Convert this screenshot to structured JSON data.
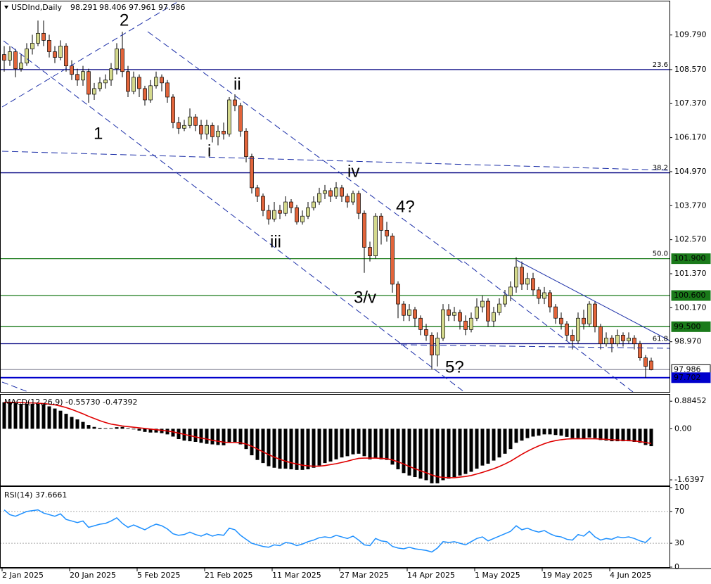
{
  "chart_data": [
    {
      "type": "candlestick",
      "symbol": "USDInd,Daily",
      "up_color": "#d4d98c",
      "down_color": "#e2643a",
      "ylim": [
        97.2,
        110.95
      ],
      "yticks": [
        {
          "value": 109.79,
          "label": "109.790"
        },
        {
          "value": 108.57,
          "label": "108.570"
        },
        {
          "value": 107.37,
          "label": "107.370"
        },
        {
          "value": 106.17,
          "label": "106.170"
        },
        {
          "value": 104.97,
          "label": "104.970"
        },
        {
          "value": 103.77,
          "label": "103.770"
        },
        {
          "value": 102.57,
          "label": "102.570"
        },
        {
          "value": 101.37,
          "label": "101.370"
        },
        {
          "value": 100.17,
          "label": "100.170"
        },
        {
          "value": 98.97,
          "label": "98.970"
        }
      ],
      "levels": [
        {
          "value": 108.57,
          "color": "#000080",
          "fib": "23.6"
        },
        {
          "value": 104.93,
          "color": "#000080",
          "fib": "38.2"
        },
        {
          "value": 101.9,
          "color": "#1a7a1a",
          "fib": "50.0",
          "label": "101.900"
        },
        {
          "value": 100.6,
          "color": "#1a7a1a",
          "label": "100.600"
        },
        {
          "value": 99.5,
          "color": "#1a7a1a",
          "label": "99.500"
        },
        {
          "value": 98.9,
          "color": "#000080",
          "fib": "61.8"
        },
        {
          "value": 97.986,
          "color": "#9a9aa8",
          "label": "97.986"
        },
        {
          "value": 97.702,
          "color": "#0000cc",
          "label": "97.702"
        }
      ],
      "annotations": [
        "2",
        "ii",
        "1",
        "i",
        "iv",
        "4?",
        "iii",
        "3/v",
        "5?"
      ],
      "categories": [
        "2 Jan 2025",
        null,
        null,
        null,
        null,
        null,
        null,
        null,
        null,
        null,
        null,
        null,
        "20 Jan 2025",
        null,
        null,
        null,
        null,
        null,
        null,
        null,
        null,
        null,
        null,
        null,
        "5 Feb 2025",
        null,
        null,
        null,
        null,
        null,
        null,
        null,
        null,
        null,
        null,
        null,
        "21 Feb 2025",
        null,
        null,
        null,
        null,
        null,
        null,
        null,
        null,
        null,
        null,
        null,
        "11 Mar 2025",
        null,
        null,
        null,
        null,
        null,
        null,
        null,
        null,
        null,
        null,
        null,
        "27 Mar 2025",
        null,
        null,
        null,
        null,
        null,
        null,
        null,
        null,
        null,
        null,
        null,
        "14 Apr 2025",
        null,
        null,
        null,
        null,
        null,
        null,
        null,
        null,
        null,
        null,
        null,
        "1 May 2025",
        null,
        null,
        null,
        null,
        null,
        null,
        null,
        null,
        null,
        null,
        null,
        "19 May 2025",
        null,
        null,
        null,
        null,
        null,
        null,
        null,
        null,
        null,
        null,
        null,
        "4 Jun 2025",
        null,
        null,
        null,
        null,
        null,
        null,
        null
      ],
      "open": [
        109.1,
        108.9,
        109.2,
        108.6,
        108.8,
        109.3,
        109.5,
        109.85,
        109.6,
        109.2,
        109.0,
        109.4,
        108.7,
        108.4,
        108.2,
        108.5,
        107.7,
        107.9,
        108.1,
        108.2,
        108.6,
        109.3,
        108.5,
        107.8,
        108.3,
        107.9,
        107.5,
        108.0,
        108.3,
        108.1,
        107.6,
        106.7,
        106.5,
        106.6,
        106.9,
        106.6,
        106.3,
        106.6,
        106.2,
        106.4,
        106.3,
        107.5,
        107.3,
        106.4,
        105.5,
        104.4,
        104.1,
        103.6,
        103.3,
        103.6,
        103.5,
        103.9,
        103.7,
        103.2,
        103.4,
        103.7,
        103.9,
        104.2,
        104.3,
        104.1,
        104.4,
        104.1,
        103.9,
        104.2,
        103.5,
        102.3,
        102.0,
        103.4,
        102.9,
        102.7,
        101.0,
        100.3,
        99.9,
        100.1,
        99.8,
        99.4,
        99.2,
        98.5,
        99.1,
        100.1,
        99.9,
        100.0,
        99.7,
        99.4,
        99.8,
        100.2,
        100.4,
        99.7,
        100.0,
        100.3,
        100.6,
        100.9,
        101.6,
        101.0,
        101.2,
        100.8,
        100.5,
        100.7,
        100.2,
        99.8,
        99.6,
        99.2,
        99.0,
        99.8,
        99.6,
        100.3,
        99.5,
        98.9,
        99.1,
        98.9,
        99.2,
        99.0,
        99.1,
        98.9,
        98.4,
        98.291
      ],
      "high": [
        109.4,
        109.4,
        109.3,
        109.1,
        109.5,
        109.8,
        110.3,
        110.3,
        109.8,
        109.4,
        109.6,
        109.5,
        108.9,
        108.6,
        108.7,
        108.6,
        108.1,
        108.3,
        108.4,
        108.8,
        109.5,
        109.9,
        108.7,
        108.5,
        108.4,
        108.0,
        108.2,
        108.5,
        108.4,
        108.2,
        107.7,
        106.9,
        106.8,
        107.2,
        107.0,
        106.8,
        106.8,
        106.7,
        106.6,
        106.7,
        107.6,
        107.7,
        107.4,
        106.5,
        105.6,
        104.5,
        104.2,
        103.8,
        103.9,
        103.8,
        104.1,
        104.0,
        103.8,
        103.6,
        103.9,
        104.1,
        104.4,
        104.5,
        104.4,
        104.6,
        104.5,
        104.2,
        104.3,
        104.3,
        103.6,
        102.5,
        103.5,
        103.5,
        103.2,
        102.8,
        101.1,
        100.4,
        100.3,
        100.2,
        99.9,
        99.6,
        99.3,
        99.3,
        100.3,
        100.3,
        100.2,
        100.1,
        99.9,
        100.0,
        100.5,
        100.6,
        100.5,
        100.2,
        100.5,
        100.8,
        101.1,
        101.95,
        101.8,
        101.4,
        101.4,
        100.9,
        100.9,
        100.8,
        100.3,
        100.0,
        99.7,
        99.4,
        100.0,
        100.1,
        100.4,
        100.4,
        99.6,
        99.3,
        99.2,
        99.4,
        99.3,
        99.3,
        99.2,
        99.0,
        98.5,
        98.406
      ],
      "low": [
        108.5,
        108.7,
        108.3,
        108.5,
        108.7,
        109.1,
        109.4,
        109.4,
        109.0,
        108.8,
        108.9,
        108.5,
        108.2,
        108.0,
        108.0,
        107.4,
        107.5,
        107.8,
        107.9,
        108.0,
        108.4,
        108.3,
        107.6,
        107.7,
        107.6,
        107.3,
        107.4,
        107.9,
        107.8,
        107.4,
        106.5,
        106.3,
        106.4,
        106.5,
        106.4,
        106.1,
        106.1,
        106.0,
        105.9,
        106.1,
        106.2,
        107.1,
        106.2,
        105.3,
        104.2,
        103.9,
        103.4,
        103.1,
        103.2,
        103.3,
        103.4,
        103.5,
        103.1,
        103.1,
        103.3,
        103.6,
        103.8,
        104.0,
        103.9,
        104.0,
        103.9,
        103.7,
        103.8,
        103.3,
        101.4,
        101.8,
        101.9,
        102.4,
        102.5,
        100.7,
        99.8,
        99.7,
        99.7,
        99.5,
        99.2,
        99.0,
        98.0,
        98.1,
        99.0,
        99.7,
        99.7,
        99.4,
        99.2,
        99.3,
        99.7,
        100.0,
        99.5,
        99.5,
        99.9,
        100.2,
        100.4,
        100.7,
        100.8,
        100.8,
        100.6,
        100.3,
        100.3,
        100.0,
        99.6,
        99.4,
        99.0,
        98.7,
        98.9,
        99.4,
        99.5,
        99.3,
        98.7,
        98.8,
        98.6,
        98.8,
        98.8,
        98.9,
        98.7,
        98.3,
        97.7,
        97.961
      ],
      "close": [
        108.9,
        109.2,
        108.6,
        108.8,
        109.3,
        109.5,
        109.85,
        109.6,
        109.2,
        109.0,
        109.4,
        108.7,
        108.4,
        108.2,
        108.5,
        107.7,
        107.9,
        108.1,
        108.2,
        108.6,
        109.3,
        108.5,
        107.8,
        108.3,
        107.9,
        107.5,
        108.0,
        108.3,
        108.1,
        107.6,
        106.7,
        106.5,
        106.6,
        106.9,
        106.6,
        106.3,
        106.6,
        106.2,
        106.4,
        106.3,
        107.5,
        107.3,
        106.4,
        105.5,
        104.4,
        104.1,
        103.6,
        103.3,
        103.6,
        103.5,
        103.9,
        103.7,
        103.2,
        103.4,
        103.7,
        103.9,
        104.2,
        104.3,
        104.1,
        104.4,
        104.1,
        103.9,
        104.2,
        103.5,
        102.3,
        102.0,
        103.4,
        102.9,
        102.7,
        101.0,
        100.3,
        99.9,
        100.1,
        99.8,
        99.4,
        99.2,
        98.5,
        99.1,
        100.1,
        99.9,
        100.0,
        99.7,
        99.4,
        99.8,
        100.2,
        100.4,
        99.7,
        100.0,
        100.3,
        100.6,
        100.9,
        101.6,
        101.0,
        101.2,
        100.8,
        100.5,
        100.7,
        100.2,
        99.8,
        99.6,
        99.2,
        99.0,
        99.8,
        99.6,
        100.3,
        99.5,
        98.9,
        99.1,
        98.9,
        99.2,
        99.0,
        99.1,
        98.9,
        98.4,
        98.1,
        97.986
      ]
    },
    {
      "type": "macd",
      "title": "MACD(12,26,9) -0.55730 -0.47392",
      "color": "#000000",
      "signal_color": "#e00000",
      "ylim": [
        -1.82,
        1.07
      ],
      "yticks": [
        0.88452,
        {
          "value": 0,
          "label": "0.00"
        },
        -1.6397
      ],
      "values": [
        0.85,
        0.85,
        0.82,
        0.8,
        0.8,
        0.8,
        0.8,
        0.78,
        0.72,
        0.65,
        0.58,
        0.48,
        0.38,
        0.3,
        0.22,
        0.12,
        0.06,
        0.03,
        0.02,
        0.02,
        0.05,
        0.06,
        0.02,
        -0.02,
        -0.06,
        -0.1,
        -0.12,
        -0.12,
        -0.14,
        -0.18,
        -0.25,
        -0.33,
        -0.38,
        -0.4,
        -0.42,
        -0.45,
        -0.48,
        -0.5,
        -0.52,
        -0.53,
        -0.45,
        -0.42,
        -0.5,
        -0.65,
        -0.85,
        -1.0,
        -1.1,
        -1.2,
        -1.25,
        -1.28,
        -1.28,
        -1.3,
        -1.32,
        -1.32,
        -1.3,
        -1.25,
        -1.18,
        -1.1,
        -1.05,
        -0.98,
        -0.92,
        -0.88,
        -0.82,
        -0.8,
        -0.88,
        -0.98,
        -0.95,
        -0.98,
        -1.0,
        -1.15,
        -1.3,
        -1.42,
        -1.5,
        -1.55,
        -1.6,
        -1.65,
        -1.75,
        -1.75,
        -1.65,
        -1.6,
        -1.55,
        -1.5,
        -1.45,
        -1.38,
        -1.28,
        -1.18,
        -1.12,
        -1.02,
        -0.92,
        -0.8,
        -0.65,
        -0.45,
        -0.38,
        -0.3,
        -0.25,
        -0.22,
        -0.18,
        -0.18,
        -0.2,
        -0.22,
        -0.26,
        -0.3,
        -0.3,
        -0.32,
        -0.28,
        -0.3,
        -0.36,
        -0.38,
        -0.4,
        -0.4,
        -0.4,
        -0.4,
        -0.42,
        -0.45,
        -0.52,
        -0.5573
      ],
      "signal": [
        0.85,
        0.85,
        0.85,
        0.84,
        0.83,
        0.83,
        0.82,
        0.81,
        0.79,
        0.77,
        0.73,
        0.68,
        0.62,
        0.55,
        0.48,
        0.4,
        0.33,
        0.26,
        0.2,
        0.15,
        0.12,
        0.09,
        0.07,
        0.05,
        0.03,
        0.01,
        -0.01,
        -0.03,
        -0.05,
        -0.07,
        -0.1,
        -0.14,
        -0.18,
        -0.22,
        -0.26,
        -0.3,
        -0.33,
        -0.37,
        -0.4,
        -0.43,
        -0.44,
        -0.44,
        -0.45,
        -0.49,
        -0.56,
        -0.65,
        -0.74,
        -0.83,
        -0.91,
        -0.98,
        -1.04,
        -1.09,
        -1.13,
        -1.17,
        -1.19,
        -1.2,
        -1.2,
        -1.18,
        -1.15,
        -1.12,
        -1.08,
        -1.04,
        -0.99,
        -0.95,
        -0.94,
        -0.94,
        -0.94,
        -0.95,
        -0.96,
        -1.0,
        -1.06,
        -1.13,
        -1.21,
        -1.28,
        -1.35,
        -1.41,
        -1.48,
        -1.54,
        -1.56,
        -1.57,
        -1.57,
        -1.55,
        -1.53,
        -1.5,
        -1.45,
        -1.4,
        -1.34,
        -1.28,
        -1.21,
        -1.13,
        -1.04,
        -0.93,
        -0.82,
        -0.72,
        -0.63,
        -0.55,
        -0.48,
        -0.42,
        -0.38,
        -0.35,
        -0.33,
        -0.32,
        -0.32,
        -0.32,
        -0.32,
        -0.32,
        -0.33,
        -0.34,
        -0.35,
        -0.36,
        -0.37,
        -0.38,
        -0.39,
        -0.41,
        -0.44,
        -0.47392
      ]
    },
    {
      "type": "line",
      "title": "RSI(14) 37.6661",
      "color": "#1e90ff",
      "ylim": [
        0,
        100
      ],
      "yticks": [
        100,
        70,
        30,
        0
      ],
      "values": [
        72,
        66,
        64,
        67,
        70,
        71,
        72,
        68,
        66,
        64,
        67,
        60,
        58,
        56,
        58,
        50,
        52,
        54,
        55,
        58,
        62,
        55,
        50,
        53,
        50,
        47,
        51,
        54,
        52,
        48,
        42,
        40,
        41,
        44,
        41,
        39,
        42,
        39,
        41,
        40,
        49,
        47,
        40,
        35,
        30,
        28,
        26,
        25,
        28,
        27,
        31,
        30,
        27,
        29,
        32,
        34,
        37,
        38,
        37,
        40,
        38,
        36,
        39,
        34,
        28,
        27,
        36,
        33,
        32,
        26,
        24,
        23,
        25,
        23,
        22,
        21,
        19,
        24,
        32,
        31,
        32,
        30,
        28,
        32,
        36,
        38,
        33,
        36,
        39,
        42,
        45,
        52,
        47,
        49,
        46,
        44,
        46,
        42,
        39,
        38,
        35,
        34,
        41,
        39,
        45,
        38,
        34,
        36,
        35,
        38,
        37,
        38,
        36,
        33,
        31,
        37.6661
      ]
    }
  ]
}
